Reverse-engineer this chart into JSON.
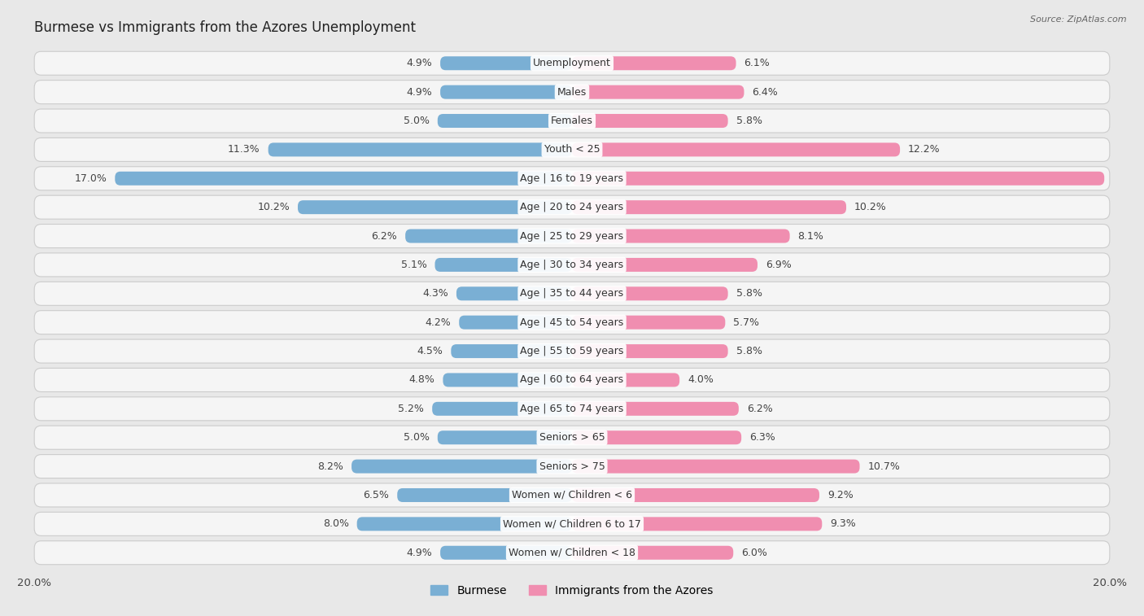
{
  "title": "Burmese vs Immigrants from the Azores Unemployment",
  "source": "Source: ZipAtlas.com",
  "categories": [
    "Unemployment",
    "Males",
    "Females",
    "Youth < 25",
    "Age | 16 to 19 years",
    "Age | 20 to 24 years",
    "Age | 25 to 29 years",
    "Age | 30 to 34 years",
    "Age | 35 to 44 years",
    "Age | 45 to 54 years",
    "Age | 55 to 59 years",
    "Age | 60 to 64 years",
    "Age | 65 to 74 years",
    "Seniors > 65",
    "Seniors > 75",
    "Women w/ Children < 6",
    "Women w/ Children 6 to 17",
    "Women w/ Children < 18"
  ],
  "burmese": [
    4.9,
    4.9,
    5.0,
    11.3,
    17.0,
    10.2,
    6.2,
    5.1,
    4.3,
    4.2,
    4.5,
    4.8,
    5.2,
    5.0,
    8.2,
    6.5,
    8.0,
    4.9
  ],
  "azores": [
    6.1,
    6.4,
    5.8,
    12.2,
    19.8,
    10.2,
    8.1,
    6.9,
    5.8,
    5.7,
    5.8,
    4.0,
    6.2,
    6.3,
    10.7,
    9.2,
    9.3,
    6.0
  ],
  "burmese_color": "#7aafd4",
  "azores_color": "#f08eb0",
  "background_color": "#e8e8e8",
  "row_bg_color": "#f5f5f5",
  "axis_max": 20.0,
  "label_fontsize": 9.0,
  "title_fontsize": 12,
  "value_label_white_threshold": 2.0,
  "legend_labels": [
    "Burmese",
    "Immigrants from the Azores"
  ]
}
